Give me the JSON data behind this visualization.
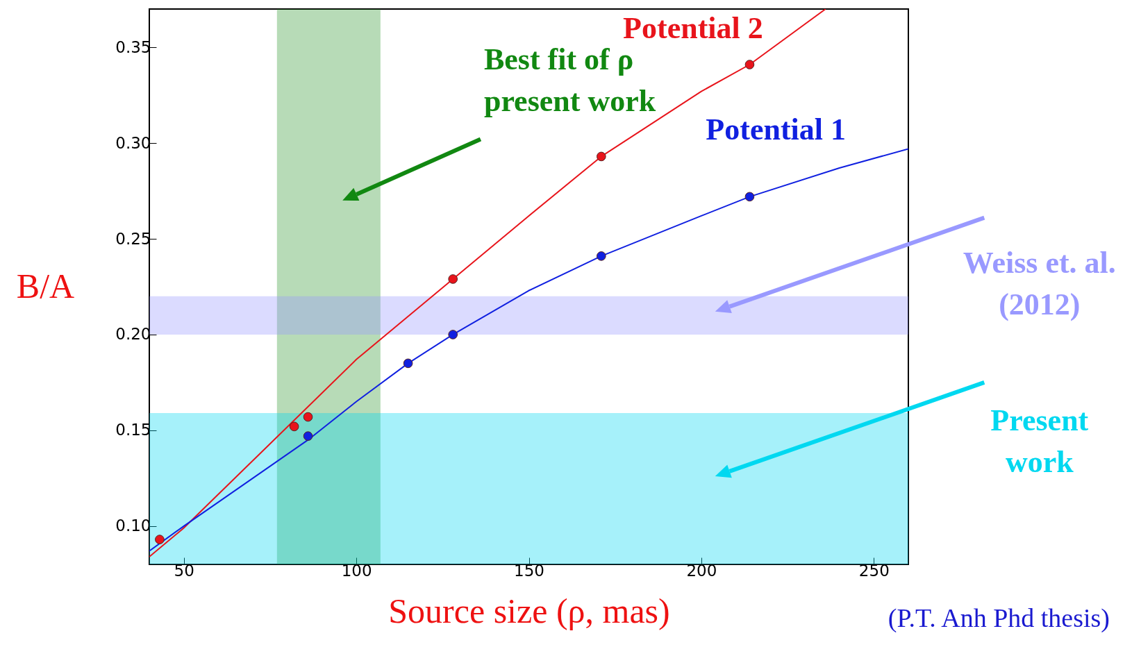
{
  "chart_data": {
    "type": "line",
    "xlabel": "Source size (ρ, mas)",
    "ylabel": "B/A",
    "xlim": [
      40,
      260
    ],
    "ylim": [
      0.08,
      0.37
    ],
    "xticks": [
      50,
      100,
      150,
      200,
      250
    ],
    "yticks": [
      {
        "value": 0.1,
        "label": "0.10"
      },
      0.15,
      {
        "value": 0.2,
        "label": "0.20"
      },
      0.25,
      {
        "value": 0.3,
        "label": "0.30"
      },
      0.35
    ],
    "grid": false,
    "series": [
      {
        "name": "Potential 2",
        "color": "#e8141b",
        "marker": "none",
        "x": [
          40,
          50,
          75,
          100,
          128,
          150,
          171,
          200,
          214,
          236
        ],
        "values": [
          0.084,
          0.099,
          0.143,
          0.187,
          0.229,
          0.262,
          0.293,
          0.327,
          0.341,
          0.37
        ]
      },
      {
        "name": "Potential 1",
        "color": "#1020e0",
        "marker": "none",
        "x": [
          40,
          50,
          86,
          100,
          115,
          128,
          150,
          171,
          200,
          214,
          240,
          260
        ],
        "values": [
          0.087,
          0.1,
          0.145,
          0.165,
          0.185,
          0.2,
          0.223,
          0.241,
          0.262,
          0.272,
          0.287,
          0.297
        ]
      },
      {
        "type": "scatter",
        "color": "#e8141b",
        "marker": "circle",
        "x": [
          43,
          82,
          86,
          128,
          171,
          214
        ],
        "values": [
          0.093,
          0.152,
          0.157,
          0.229,
          0.293,
          0.341
        ]
      },
      {
        "type": "scatter",
        "color": "#1020e0",
        "marker": "circle",
        "x": [
          86,
          115,
          128,
          171,
          214
        ],
        "values": [
          0.147,
          0.185,
          0.2,
          0.241,
          0.272
        ]
      }
    ],
    "bands": [
      {
        "axis": "x",
        "from": 77,
        "to": 107,
        "label": "Best fit of ρ\npresent work",
        "color": "#118811"
      },
      {
        "axis": "y",
        "from": 0.2,
        "to": 0.22,
        "label": "Weiss et. al.\n(2012)",
        "color": "#9999ff"
      },
      {
        "axis": "y",
        "from": 0.08,
        "to": 0.159,
        "label": "Present\nwork",
        "color": "#00d8f0"
      }
    ],
    "annotations": [
      "(P.T. Anh Phd thesis)"
    ]
  }
}
